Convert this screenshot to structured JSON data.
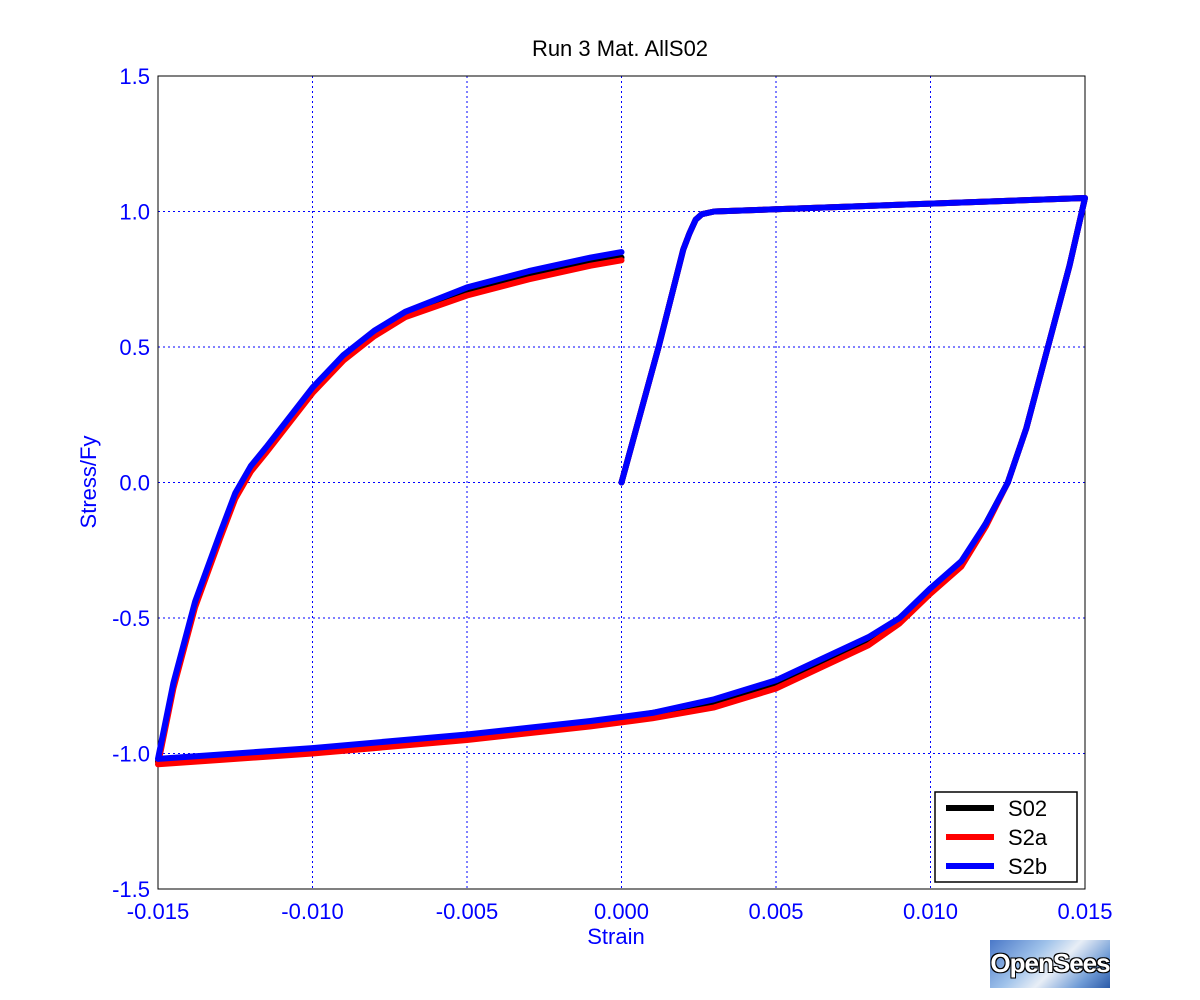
{
  "chart_data": {
    "type": "line",
    "title": "Run 3   Mat. AllS02",
    "xlabel": "Strain",
    "ylabel": "Stress/Fy",
    "xlim": [
      -0.015,
      0.015
    ],
    "ylim": [
      -1.5,
      1.5
    ],
    "x_ticks": [
      "-0.015",
      "-0.010",
      "-0.005",
      "0.000",
      "0.005",
      "0.010",
      "0.015"
    ],
    "y_ticks": [
      "-1.5",
      "-1.0",
      "-0.5",
      "0.0",
      "0.5",
      "1.0",
      "1.5"
    ],
    "grid": true,
    "legend_position": "bottom-right",
    "series": [
      {
        "name": "S02",
        "color": "#000000",
        "points": [
          [
            0,
            0
          ],
          [
            0.0012,
            0.5
          ],
          [
            0.002,
            0.86
          ],
          [
            0.0022,
            0.92
          ],
          [
            0.0024,
            0.97
          ],
          [
            0.0026,
            0.99
          ],
          [
            0.003,
            1.0
          ],
          [
            0.015,
            1.05
          ],
          [
            0.0145,
            0.8
          ],
          [
            0.0138,
            0.5
          ],
          [
            0.0131,
            0.2
          ],
          [
            0.0125,
            0.0
          ],
          [
            0.0118,
            -0.15
          ],
          [
            0.011,
            -0.3
          ],
          [
            0.01,
            -0.4
          ],
          [
            0.009,
            -0.5
          ],
          [
            0.008,
            -0.58
          ],
          [
            0.0065,
            -0.66
          ],
          [
            0.005,
            -0.74
          ],
          [
            0.003,
            -0.81
          ],
          [
            0.001,
            -0.85
          ],
          [
            -0.001,
            -0.89
          ],
          [
            -0.005,
            -0.94
          ],
          [
            -0.01,
            -0.985
          ],
          [
            -0.015,
            -1.03
          ],
          [
            -0.0145,
            -0.75
          ],
          [
            -0.0138,
            -0.45
          ],
          [
            -0.013,
            -0.2
          ],
          [
            -0.0125,
            -0.05
          ],
          [
            -0.012,
            0.05
          ],
          [
            -0.0115,
            0.12
          ],
          [
            -0.01,
            0.34
          ],
          [
            -0.009,
            0.46
          ],
          [
            -0.008,
            0.55
          ],
          [
            -0.007,
            0.62
          ],
          [
            -0.005,
            0.71
          ],
          [
            -0.003,
            0.77
          ],
          [
            -0.001,
            0.82
          ],
          [
            0.0,
            0.83
          ]
        ]
      },
      {
        "name": "S2a",
        "color": "#ff0000",
        "points": [
          [
            0,
            0
          ],
          [
            0.0012,
            0.5
          ],
          [
            0.002,
            0.86
          ],
          [
            0.0022,
            0.92
          ],
          [
            0.0024,
            0.97
          ],
          [
            0.0026,
            0.99
          ],
          [
            0.003,
            1.0
          ],
          [
            0.015,
            1.05
          ],
          [
            0.0145,
            0.8
          ],
          [
            0.0138,
            0.5
          ],
          [
            0.0131,
            0.2
          ],
          [
            0.0125,
            0.0
          ],
          [
            0.0118,
            -0.16
          ],
          [
            0.011,
            -0.31
          ],
          [
            0.01,
            -0.41
          ],
          [
            0.009,
            -0.52
          ],
          [
            0.008,
            -0.6
          ],
          [
            0.0065,
            -0.68
          ],
          [
            0.005,
            -0.76
          ],
          [
            0.003,
            -0.83
          ],
          [
            0.001,
            -0.87
          ],
          [
            -0.001,
            -0.9
          ],
          [
            -0.005,
            -0.95
          ],
          [
            -0.01,
            -1.0
          ],
          [
            -0.015,
            -1.04
          ],
          [
            -0.0145,
            -0.76
          ],
          [
            -0.0138,
            -0.46
          ],
          [
            -0.013,
            -0.21
          ],
          [
            -0.0125,
            -0.06
          ],
          [
            -0.012,
            0.04
          ],
          [
            -0.0115,
            0.11
          ],
          [
            -0.01,
            0.33
          ],
          [
            -0.009,
            0.45
          ],
          [
            -0.008,
            0.54
          ],
          [
            -0.007,
            0.61
          ],
          [
            -0.005,
            0.69
          ],
          [
            -0.003,
            0.75
          ],
          [
            -0.001,
            0.8
          ],
          [
            0.0,
            0.82
          ]
        ]
      },
      {
        "name": "S2b",
        "color": "#0000ff",
        "points": [
          [
            0,
            0
          ],
          [
            0.0012,
            0.5
          ],
          [
            0.002,
            0.86
          ],
          [
            0.0022,
            0.92
          ],
          [
            0.0024,
            0.97
          ],
          [
            0.0026,
            0.99
          ],
          [
            0.003,
            1.0
          ],
          [
            0.015,
            1.05
          ],
          [
            0.0145,
            0.8
          ],
          [
            0.0138,
            0.5
          ],
          [
            0.0131,
            0.2
          ],
          [
            0.0125,
            0.0
          ],
          [
            0.0118,
            -0.15
          ],
          [
            0.011,
            -0.29
          ],
          [
            0.01,
            -0.39
          ],
          [
            0.009,
            -0.5
          ],
          [
            0.008,
            -0.57
          ],
          [
            0.0065,
            -0.65
          ],
          [
            0.005,
            -0.73
          ],
          [
            0.003,
            -0.8
          ],
          [
            0.001,
            -0.85
          ],
          [
            -0.001,
            -0.88
          ],
          [
            -0.005,
            -0.93
          ],
          [
            -0.01,
            -0.98
          ],
          [
            -0.015,
            -1.02
          ],
          [
            -0.0145,
            -0.74
          ],
          [
            -0.0138,
            -0.44
          ],
          [
            -0.013,
            -0.19
          ],
          [
            -0.0125,
            -0.04
          ],
          [
            -0.012,
            0.06
          ],
          [
            -0.0115,
            0.13
          ],
          [
            -0.01,
            0.35
          ],
          [
            -0.009,
            0.47
          ],
          [
            -0.008,
            0.56
          ],
          [
            -0.007,
            0.63
          ],
          [
            -0.005,
            0.72
          ],
          [
            -0.003,
            0.78
          ],
          [
            -0.001,
            0.83
          ],
          [
            0.0,
            0.85
          ]
        ]
      }
    ]
  },
  "logo": {
    "text": "OpenSees"
  }
}
